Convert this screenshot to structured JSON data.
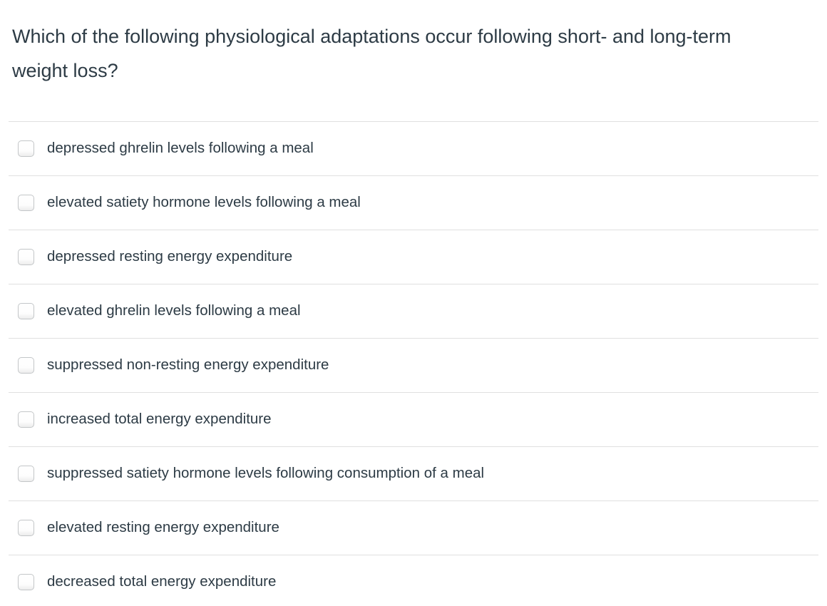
{
  "question": {
    "text": "Which of the following physiological adaptations occur following short- and long-term weight loss?"
  },
  "options": [
    "depressed ghrelin levels following a meal",
    "elevated satiety hormone levels following a meal",
    "depressed resting energy expenditure",
    "elevated ghrelin levels following a meal",
    "suppressed non-resting energy expenditure",
    "increased total energy expenditure",
    "suppressed satiety hormone levels following consumption of a meal",
    "elevated resting energy expenditure",
    "decreased total energy expenditure"
  ],
  "colors": {
    "text": "#2d3b45",
    "divider": "#e0e0e0",
    "checkbox_border": "#c3c6c8",
    "background": "#ffffff"
  }
}
